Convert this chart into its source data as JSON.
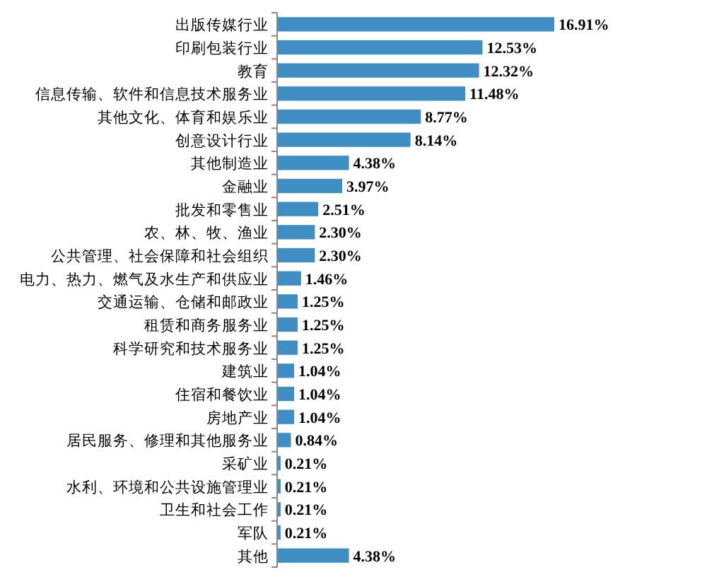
{
  "chart_data": {
    "type": "bar",
    "orientation": "horizontal",
    "color": "#3f8fc4",
    "categories": [
      "出版传媒行业",
      "印刷包装行业",
      "教育",
      "信息传输、软件和信息技术服务业",
      "其他文化、体育和娱乐业",
      "创意设计行业",
      "其他制造业",
      "金融业",
      "批发和零售业",
      "农、林、牧、渔业",
      "公共管理、社会保障和社会组织",
      "电力、热力、燃气及水生产和供应业",
      "交通运输、仓储和邮政业",
      "租赁和商务服务业",
      "科学研究和技术服务业",
      "建筑业",
      "住宿和餐饮业",
      "房地产业",
      "居民服务、修理和其他服务业",
      "采矿业",
      "水利、环境和公共设施管理业",
      "卫生和社会工作",
      "军队",
      "其他"
    ],
    "values": [
      16.91,
      12.53,
      12.32,
      11.48,
      8.77,
      8.14,
      4.38,
      3.97,
      2.51,
      2.3,
      2.3,
      1.46,
      1.25,
      1.25,
      1.25,
      1.04,
      1.04,
      1.04,
      0.84,
      0.21,
      0.21,
      0.21,
      0.21,
      4.38
    ],
    "value_labels": [
      "16.91%",
      "12.53%",
      "12.32%",
      "11.48%",
      "8.77%",
      "8.14%",
      "4.38%",
      "3.97%",
      "2.51%",
      "2.30%",
      "2.30%",
      "1.46%",
      "1.25%",
      "1.25%",
      "1.25%",
      "1.04%",
      "1.04%",
      "1.04%",
      "0.84%",
      "0.21%",
      "0.21%",
      "0.21%",
      "0.21%",
      "4.38%"
    ]
  }
}
